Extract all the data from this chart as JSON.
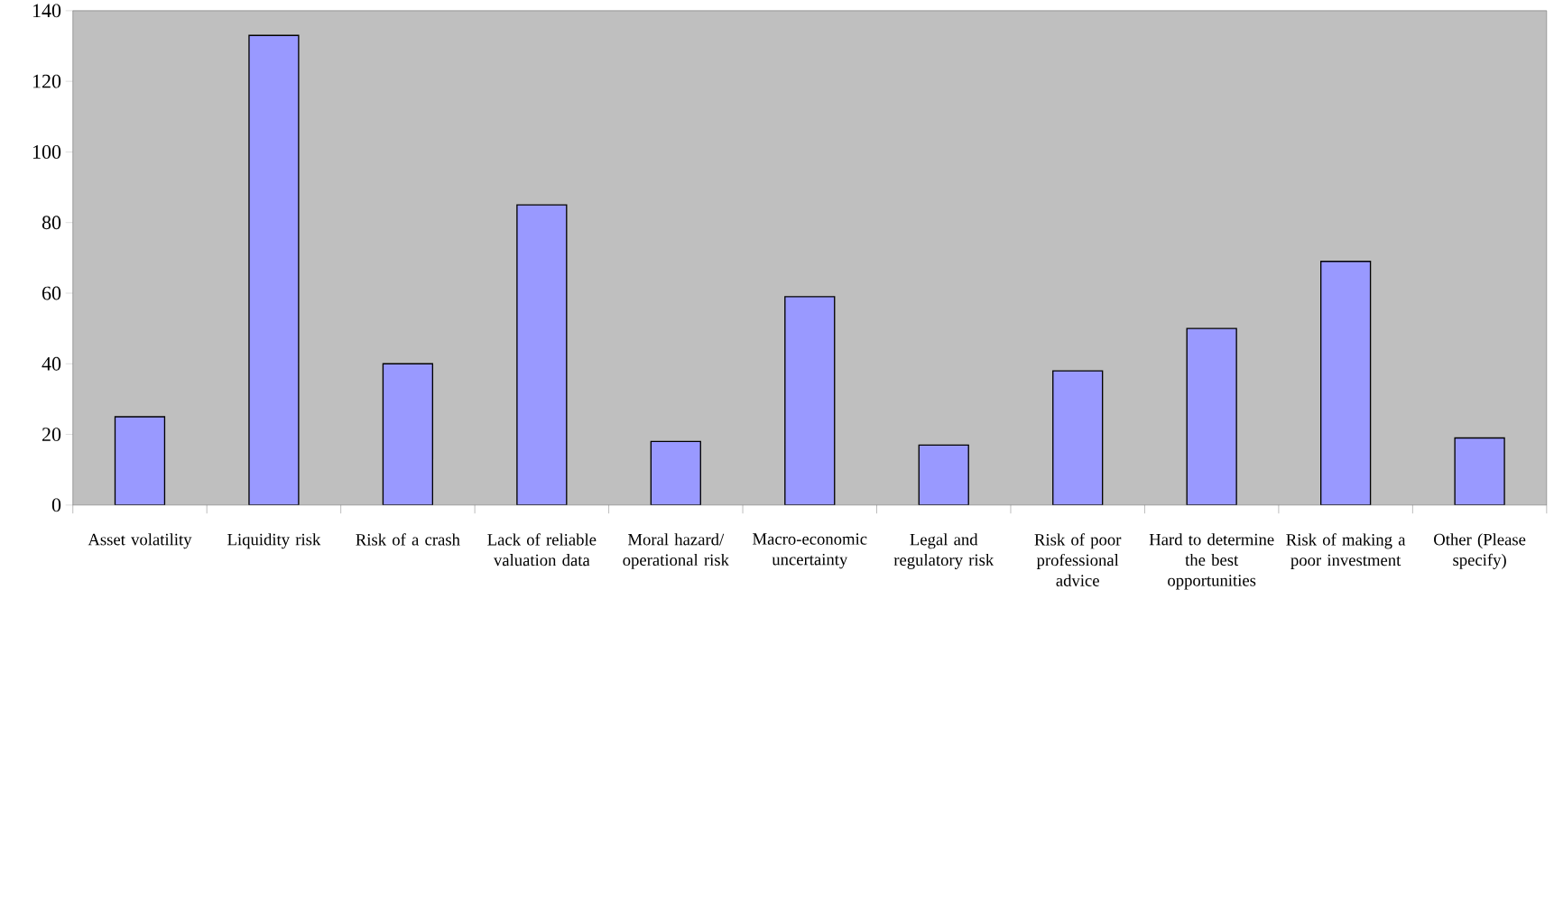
{
  "chart_data": {
    "type": "bar",
    "categories": [
      "Asset volatility",
      "Liquidity risk",
      "Risk of a crash",
      "Lack of reliable valuation data",
      "Moral hazard/ operational risk",
      "Macro-economic uncertainty",
      "Legal and regulatory risk",
      "Risk of poor professional advice",
      "Hard to determine the best opportunities",
      "Risk of making a poor investment",
      "Other (Please specify)"
    ],
    "values": [
      25,
      133,
      40,
      85,
      18,
      59,
      17,
      38,
      50,
      69,
      19
    ],
    "color": "#9999ff",
    "ylim": [
      0,
      140
    ],
    "yticks": [
      0,
      20,
      40,
      60,
      80,
      100,
      120,
      140
    ]
  }
}
